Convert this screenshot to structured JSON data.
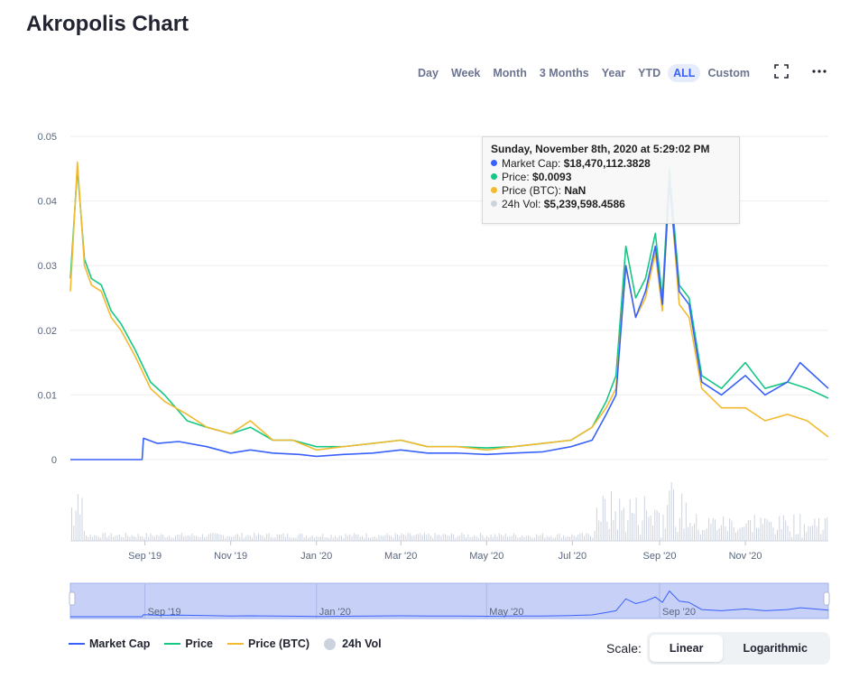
{
  "page": {
    "title": "Akropolis Chart"
  },
  "toolbar": {
    "ranges": [
      "Day",
      "Week",
      "Month",
      "3 Months",
      "Year",
      "YTD",
      "ALL",
      "Custom"
    ],
    "active_range": "ALL",
    "fullscreen_icon": "fullscreen-icon",
    "menu_icon": "more-horizontal-icon"
  },
  "tooltip": {
    "title": "Sunday, November 8th, 2020 at 5:29:02 PM",
    "rows": [
      {
        "label": "Market Cap:",
        "value": "$18,470,112.3828",
        "color": "#3861fb"
      },
      {
        "label": "Price:",
        "value": "$0.0093",
        "color": "#16c784"
      },
      {
        "label": "Price (BTC):",
        "value": "NaN",
        "color": "#f3ba2f"
      },
      {
        "label": "24h Vol:",
        "value": "$5,239,598.4586",
        "color": "#cdd3de"
      }
    ]
  },
  "legend": {
    "market_cap": "Market Cap",
    "price": "Price",
    "price_btc": "Price (BTC)",
    "vol": "24h Vol"
  },
  "scale": {
    "label": "Scale:",
    "options": [
      "Linear",
      "Logarithmic"
    ],
    "active": "Linear"
  },
  "colors": {
    "market_cap": "#3861fb",
    "price": "#16c784",
    "price_btc": "#f3ba2f",
    "volume": "#cdd3de",
    "grid": "#eeeeee",
    "navigator_fill": "#c7d1f7"
  },
  "chart_data": {
    "type": "line",
    "title": "",
    "xlabel": "",
    "ylabel": "",
    "ylim": [
      0,
      0.05
    ],
    "yticks": [
      0,
      0.01,
      0.02,
      0.03,
      0.04,
      0.05
    ],
    "ytick_labels": [
      "0",
      "0.01",
      "0.02",
      "0.03",
      "0.04",
      "0.05"
    ],
    "xlim": [
      "2019-07-10",
      "2020-12-30"
    ],
    "xtick_labels": [
      {
        "label": "Sep '19",
        "date": "2019-09-01"
      },
      {
        "label": "Nov '19",
        "date": "2019-11-01"
      },
      {
        "label": "Jan '20",
        "date": "2020-01-01"
      },
      {
        "label": "Mar '20",
        "date": "2020-03-01"
      },
      {
        "label": "May '20",
        "date": "2020-05-01"
      },
      {
        "label": "Jul '20",
        "date": "2020-07-01"
      },
      {
        "label": "Sep '20",
        "date": "2020-09-01"
      },
      {
        "label": "Nov '20",
        "date": "2020-11-01"
      }
    ],
    "navigator_tick_labels": [
      {
        "label": "Sep '19",
        "date": "2019-09-01"
      },
      {
        "label": "Jan '20",
        "date": "2020-01-01"
      },
      {
        "label": "May '20",
        "date": "2020-05-01"
      },
      {
        "label": "Sep '20",
        "date": "2020-09-01"
      }
    ],
    "legend_position": "bottom-left",
    "grid": true,
    "series": [
      {
        "name": "Price",
        "x": [
          "2019-07-10",
          "2019-07-15",
          "2019-07-20",
          "2019-07-25",
          "2019-08-01",
          "2019-08-08",
          "2019-08-15",
          "2019-08-25",
          "2019-09-05",
          "2019-09-15",
          "2019-10-01",
          "2019-10-15",
          "2019-11-01",
          "2019-11-15",
          "2019-12-01",
          "2019-12-15",
          "2020-01-01",
          "2020-01-20",
          "2020-02-10",
          "2020-03-01",
          "2020-03-20",
          "2020-04-10",
          "2020-05-01",
          "2020-05-20",
          "2020-06-10",
          "2020-06-30",
          "2020-07-15",
          "2020-07-25",
          "2020-08-01",
          "2020-08-08",
          "2020-08-15",
          "2020-08-22",
          "2020-08-29",
          "2020-09-03",
          "2020-09-08",
          "2020-09-15",
          "2020-09-22",
          "2020-10-01",
          "2020-10-15",
          "2020-11-01",
          "2020-11-15",
          "2020-12-01",
          "2020-12-15",
          "2020-12-30"
        ],
        "values": [
          0.028,
          0.045,
          0.031,
          0.028,
          0.027,
          0.023,
          0.021,
          0.017,
          0.012,
          0.01,
          0.006,
          0.005,
          0.004,
          0.005,
          0.003,
          0.003,
          0.002,
          0.002,
          0.0025,
          0.003,
          0.002,
          0.002,
          0.0018,
          0.002,
          0.0025,
          0.003,
          0.005,
          0.009,
          0.013,
          0.033,
          0.025,
          0.028,
          0.035,
          0.025,
          0.045,
          0.027,
          0.025,
          0.013,
          0.011,
          0.015,
          0.011,
          0.012,
          0.011,
          0.0095
        ]
      },
      {
        "name": "Price (BTC)",
        "x": [
          "2019-07-10",
          "2019-07-15",
          "2019-07-20",
          "2019-07-25",
          "2019-08-01",
          "2019-08-08",
          "2019-08-15",
          "2019-08-25",
          "2019-09-05",
          "2019-09-15",
          "2019-10-01",
          "2019-10-15",
          "2019-11-01",
          "2019-11-15",
          "2019-12-01",
          "2019-12-15",
          "2020-01-01",
          "2020-01-20",
          "2020-02-10",
          "2020-03-01",
          "2020-03-20",
          "2020-04-10",
          "2020-05-01",
          "2020-05-20",
          "2020-06-10",
          "2020-06-30",
          "2020-07-15",
          "2020-07-25",
          "2020-08-01",
          "2020-08-08",
          "2020-08-15",
          "2020-08-22",
          "2020-08-29",
          "2020-09-03",
          "2020-09-08",
          "2020-09-15",
          "2020-09-22",
          "2020-10-01",
          "2020-10-15",
          "2020-11-01",
          "2020-11-15",
          "2020-12-01",
          "2020-12-15",
          "2020-12-30"
        ],
        "values": [
          0.026,
          0.046,
          0.03,
          0.027,
          0.026,
          0.022,
          0.02,
          0.016,
          0.011,
          0.009,
          0.007,
          0.005,
          0.004,
          0.006,
          0.003,
          0.003,
          0.0015,
          0.002,
          0.0025,
          0.003,
          0.002,
          0.002,
          0.0015,
          0.002,
          0.0025,
          0.003,
          0.005,
          0.008,
          0.011,
          0.03,
          0.022,
          0.025,
          0.032,
          0.023,
          0.043,
          0.024,
          0.022,
          0.011,
          0.008,
          0.008,
          0.006,
          0.007,
          0.006,
          0.0035
        ]
      },
      {
        "name": "Market Cap",
        "x": [
          "2019-07-10",
          "2019-08-30",
          "2019-08-31",
          "2019-09-10",
          "2019-09-25",
          "2019-10-15",
          "2019-11-01",
          "2019-11-15",
          "2019-12-01",
          "2019-12-20",
          "2020-01-01",
          "2020-01-20",
          "2020-02-10",
          "2020-03-01",
          "2020-03-20",
          "2020-04-10",
          "2020-05-01",
          "2020-05-20",
          "2020-06-10",
          "2020-06-30",
          "2020-07-15",
          "2020-07-25",
          "2020-08-01",
          "2020-08-08",
          "2020-08-15",
          "2020-08-22",
          "2020-08-29",
          "2020-09-03",
          "2020-09-08",
          "2020-09-15",
          "2020-09-22",
          "2020-10-01",
          "2020-10-15",
          "2020-11-01",
          "2020-11-15",
          "2020-12-01",
          "2020-12-10",
          "2020-12-20",
          "2020-12-30"
        ],
        "values": [
          0,
          0,
          0.0033,
          0.0025,
          0.0028,
          0.002,
          0.001,
          0.0015,
          0.001,
          0.0008,
          0.0005,
          0.0008,
          0.001,
          0.0015,
          0.001,
          0.001,
          0.0008,
          0.001,
          0.0012,
          0.002,
          0.003,
          0.007,
          0.01,
          0.03,
          0.022,
          0.026,
          0.033,
          0.024,
          0.043,
          0.026,
          0.024,
          0.012,
          0.01,
          0.013,
          0.01,
          0.012,
          0.015,
          0.013,
          0.011
        ]
      }
    ]
  }
}
